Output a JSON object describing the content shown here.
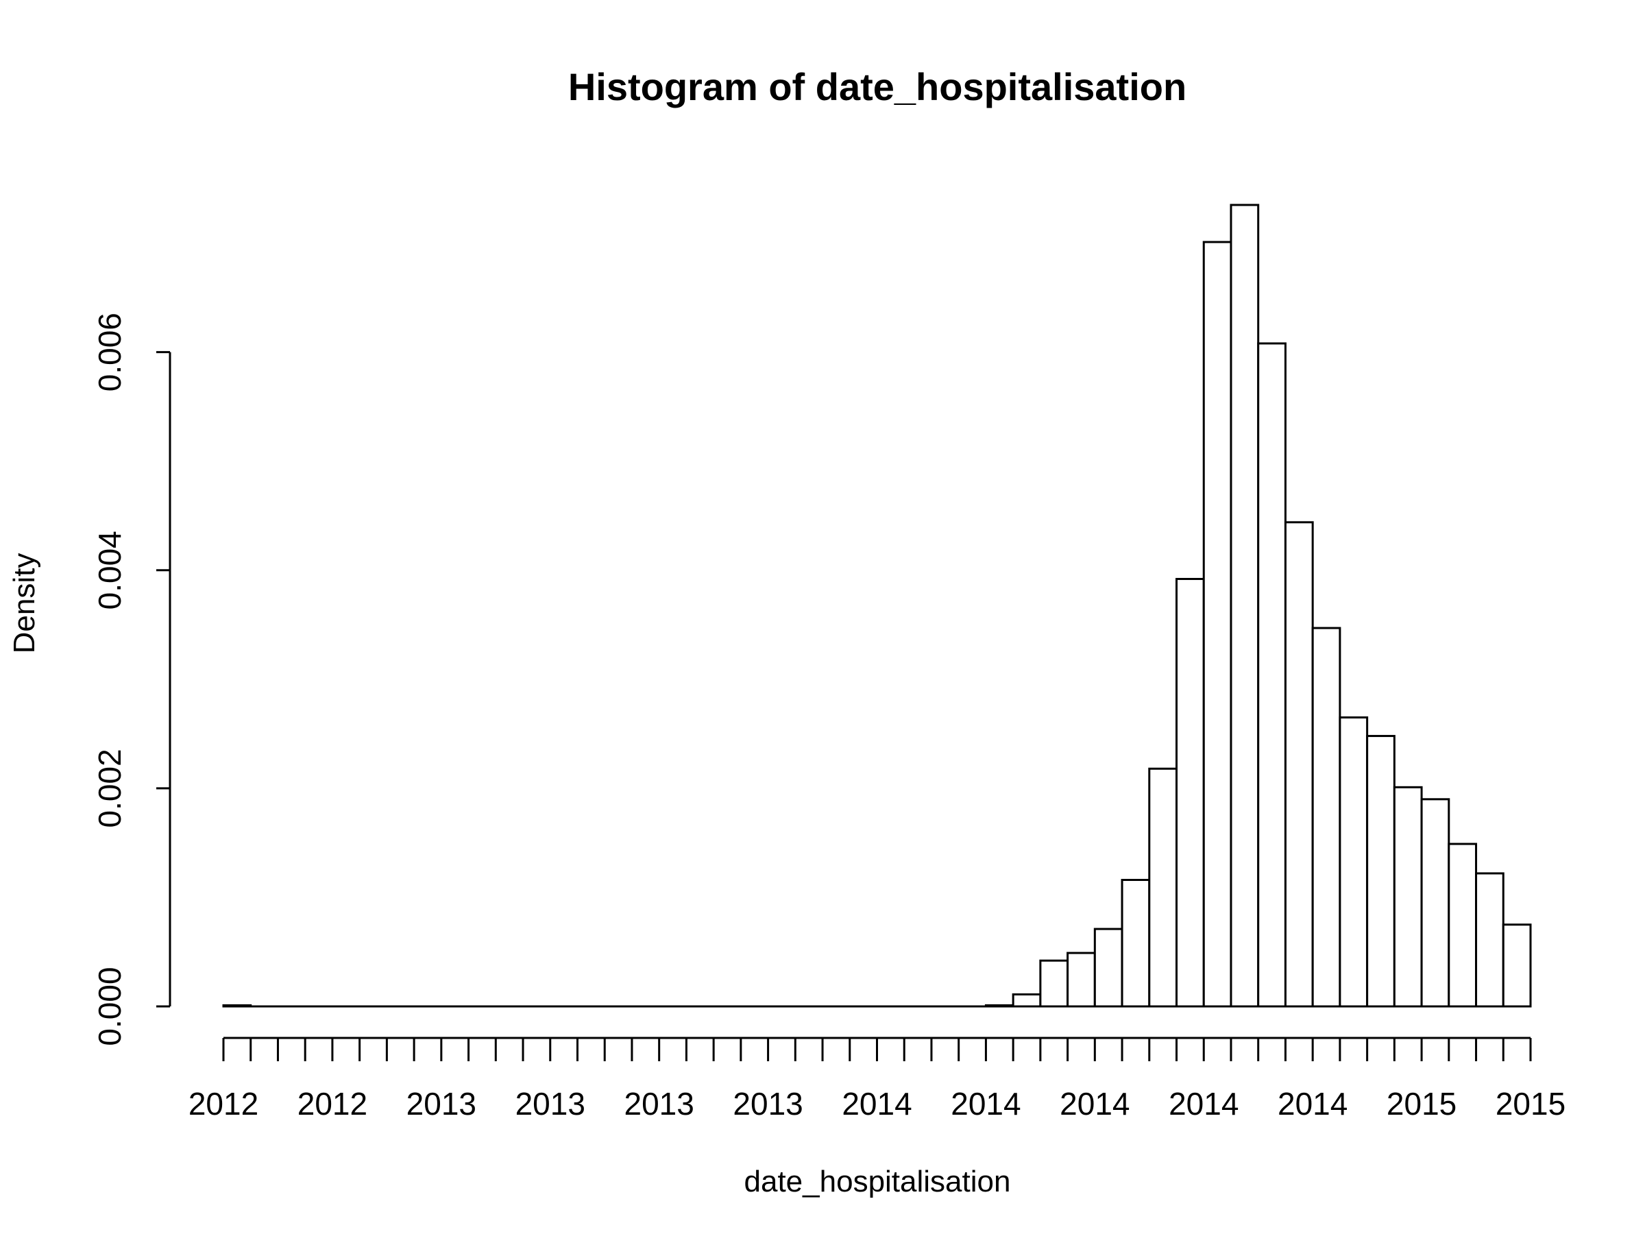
{
  "chart_data": {
    "type": "bar",
    "title": "Histogram of date_hospitalisation",
    "xlabel": "date_hospitalisation",
    "ylabel": "Density",
    "x_tick_labels": [
      "2012",
      "2012",
      "2013",
      "2013",
      "2013",
      "2013",
      "2014",
      "2014",
      "2014",
      "2014",
      "2014",
      "2015",
      "2015"
    ],
    "y_ticks": [
      0,
      0.002,
      0.004,
      0.006
    ],
    "y_tick_labels": [
      "0.000",
      "0.002",
      "0.004",
      "0.006"
    ],
    "ylim": [
      0,
      0.0074
    ],
    "grid": false,
    "values": [
      1e-05,
      0,
      0,
      0,
      0,
      0,
      0,
      0,
      0,
      0,
      0,
      0,
      0,
      0,
      0,
      0,
      0,
      0,
      0,
      0,
      0,
      0,
      0,
      0,
      0,
      0,
      0,
      0,
      1e-05,
      0.00011,
      0.00042,
      0.00049,
      0.00071,
      0.00116,
      0.00218,
      0.00392,
      0.00701,
      0.00735,
      0.00608,
      0.00444,
      0.00347,
      0.00265,
      0.00248,
      0.00201,
      0.0019,
      0.00149,
      0.00122,
      0.00075
    ]
  }
}
